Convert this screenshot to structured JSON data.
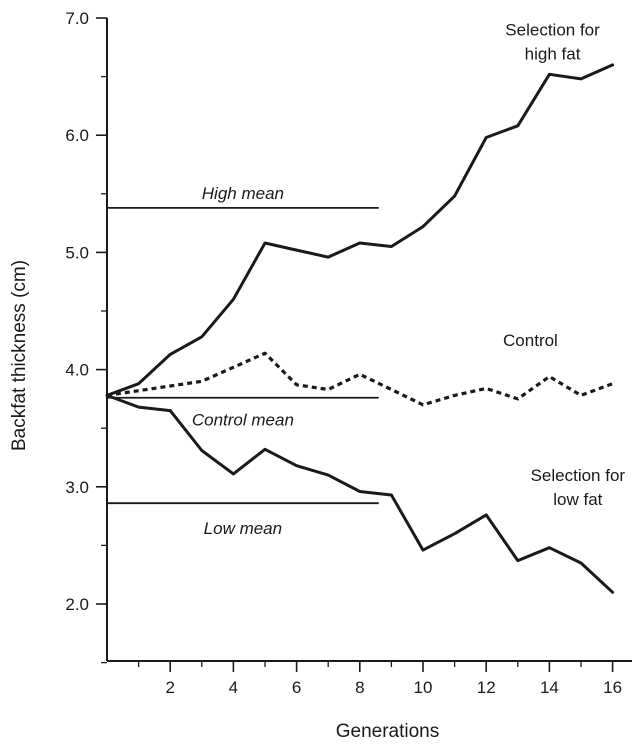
{
  "chart_data": {
    "type": "line",
    "xlabel": "Generations",
    "ylabel": "Backfat thickness (cm)",
    "xlim": [
      0,
      16.8
    ],
    "ylim": [
      1.5,
      7.0
    ],
    "xticks": [
      2,
      4,
      6,
      8,
      10,
      12,
      14,
      16
    ],
    "xtick_labels": [
      "2",
      "4",
      "6",
      "8",
      "10",
      "12",
      "14",
      "16"
    ],
    "xminor": [
      1,
      3,
      5,
      7,
      9,
      11,
      13,
      15
    ],
    "yticks": [
      2.0,
      3.0,
      4.0,
      5.0,
      6.0,
      7.0
    ],
    "ytick_labels": [
      "2.0",
      "3.0",
      "4.0",
      "5.0",
      "6.0",
      "7.0"
    ],
    "yminor": [
      1.5,
      2.5,
      3.5,
      4.5,
      5.5,
      6.5
    ],
    "x": [
      0,
      1,
      2,
      3,
      4,
      5,
      6,
      7,
      8,
      9,
      10,
      11,
      12,
      13,
      14,
      15,
      16
    ],
    "series": [
      {
        "name": "Selection for high fat",
        "style": "solid",
        "values": [
          3.78,
          3.88,
          4.13,
          4.28,
          4.6,
          5.08,
          5.02,
          4.96,
          5.08,
          5.05,
          5.22,
          5.48,
          5.98,
          6.08,
          6.52,
          6.48,
          6.6
        ]
      },
      {
        "name": "Control",
        "style": "dotted",
        "values": [
          3.78,
          3.82,
          3.86,
          3.9,
          4.02,
          4.14,
          3.87,
          3.83,
          3.96,
          3.83,
          3.7,
          3.78,
          3.84,
          3.75,
          3.94,
          3.78,
          3.88
        ]
      },
      {
        "name": "Selection for low fat",
        "style": "solid",
        "values": [
          3.78,
          3.68,
          3.65,
          3.31,
          3.11,
          3.32,
          3.18,
          3.1,
          2.96,
          2.93,
          2.46,
          2.6,
          2.76,
          2.37,
          2.48,
          2.35,
          2.1
        ]
      }
    ],
    "reference_lines": [
      {
        "label": "High mean",
        "y": 5.38,
        "x_end": 8.6
      },
      {
        "label": "Control mean",
        "y": 3.76,
        "x_end": 8.6
      },
      {
        "label": "Low mean",
        "y": 2.86,
        "x_end": 8.6
      }
    ],
    "annotations": [
      {
        "text_lines": [
          "Selection for",
          "high fat"
        ],
        "x": 14.1,
        "y_top": 6.85
      },
      {
        "text_lines": [
          "Control"
        ],
        "x": 13.4,
        "y_top": 4.2
      },
      {
        "text_lines": [
          "Selection for",
          "low fat"
        ],
        "x": 14.9,
        "y_top": 3.05
      }
    ],
    "colors": {
      "line": "#1a1a1a",
      "axis": "#1a1a1a"
    },
    "grid": false,
    "legend": "none"
  }
}
